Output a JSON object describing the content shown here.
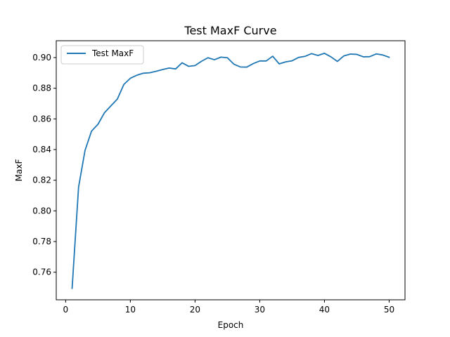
{
  "chart_data": {
    "type": "line",
    "title": "Test MaxF Curve",
    "xlabel": "Epoch",
    "ylabel": "MaxF",
    "xlim": [
      -1.45,
      52.45
    ],
    "ylim": [
      0.742,
      0.911
    ],
    "xticks": [
      0,
      10,
      20,
      30,
      40,
      50
    ],
    "yticks": [
      0.76,
      0.78,
      0.8,
      0.82,
      0.84,
      0.86,
      0.88,
      0.9
    ],
    "ytick_labels": [
      "0.76",
      "0.78",
      "0.80",
      "0.82",
      "0.84",
      "0.86",
      "0.88",
      "0.90"
    ],
    "grid": false,
    "legend": {
      "position": "upper-left"
    },
    "series": [
      {
        "name": "Test MaxF",
        "color": "#1f77b4",
        "x": [
          1,
          2,
          3,
          4,
          5,
          6,
          7,
          8,
          9,
          10,
          11,
          12,
          13,
          14,
          15,
          16,
          17,
          18,
          19,
          20,
          21,
          22,
          23,
          24,
          25,
          26,
          27,
          28,
          29,
          30,
          31,
          32,
          33,
          34,
          35,
          36,
          37,
          38,
          39,
          40,
          41,
          42,
          43,
          44,
          45,
          46,
          47,
          48,
          49,
          50
        ],
        "y": [
          0.7495,
          0.8155,
          0.8395,
          0.852,
          0.8565,
          0.864,
          0.8685,
          0.873,
          0.8825,
          0.8865,
          0.8885,
          0.8898,
          0.8901,
          0.8911,
          0.8922,
          0.8932,
          0.8926,
          0.8966,
          0.8943,
          0.8948,
          0.8976,
          0.8999,
          0.8986,
          0.9003,
          0.8999,
          0.8957,
          0.8939,
          0.8938,
          0.8961,
          0.8978,
          0.8978,
          0.9009,
          0.8959,
          0.8972,
          0.8979,
          0.9001,
          0.9008,
          0.9026,
          0.9014,
          0.9028,
          0.9005,
          0.8975,
          0.9011,
          0.9023,
          0.9021,
          0.9005,
          0.9006,
          0.9024,
          0.9017,
          0.9002
        ]
      }
    ]
  }
}
